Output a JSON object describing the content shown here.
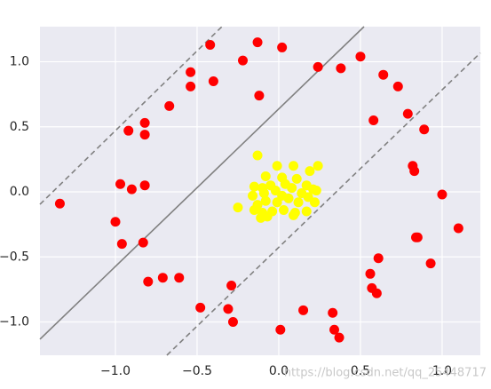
{
  "chart_data": {
    "type": "scatter",
    "xlim": [
      -1.462,
      1.234
    ],
    "ylim": [
      -1.256,
      1.27
    ],
    "xticks": [
      {
        "value": -1.0,
        "label": "−1.0"
      },
      {
        "value": -0.5,
        "label": "−0.5"
      },
      {
        "value": 0.0,
        "label": "0.0"
      },
      {
        "value": 0.5,
        "label": "0.5"
      },
      {
        "value": 1.0,
        "label": "1.0"
      }
    ],
    "yticks": [
      {
        "value": -1.0,
        "label": "−1.0"
      },
      {
        "value": -0.5,
        "label": "−0.5"
      },
      {
        "value": 0.0,
        "label": "0.0"
      },
      {
        "value": 0.5,
        "label": "0.5"
      },
      {
        "value": 1.0,
        "label": "1.0"
      }
    ],
    "grid": true,
    "background": "#eaeaf2",
    "watermark": "https://blog.csdn.net/qq_25448717",
    "series": [
      {
        "type": "line",
        "linestyle": "solid",
        "color": "#808080",
        "x": [
          -1.462,
          0.522
        ],
        "values": [
          -1.133,
          1.27
        ]
      },
      {
        "type": "line",
        "linestyle": "dashed",
        "color": "#808080",
        "x": [
          -1.462,
          -0.348
        ],
        "values": [
          -0.096,
          1.27
        ]
      },
      {
        "type": "line",
        "linestyle": "dashed",
        "color": "#808080",
        "x": [
          -0.685,
          1.234
        ],
        "values": [
          -1.256,
          1.068
        ]
      },
      {
        "type": "scatter",
        "color": "#ff0000",
        "x": [
          -1.34,
          -1.0,
          -0.96,
          -0.97,
          -0.9,
          -0.92,
          -0.82,
          -0.82,
          -0.82,
          -0.83,
          -0.8,
          -0.71,
          -0.61,
          -0.67,
          -0.54,
          -0.54,
          -0.42,
          -0.4,
          -0.22,
          -0.13,
          0.02,
          -0.12,
          0.24,
          0.38,
          0.5,
          0.64,
          0.73,
          0.58,
          0.79,
          0.89,
          0.82,
          0.83,
          1.0,
          1.1,
          0.85,
          0.84,
          0.61,
          0.93,
          0.56,
          0.57,
          0.6,
          -0.29,
          -0.48,
          -0.31,
          -0.28,
          0.01,
          0.15,
          0.33,
          0.34,
          0.37
        ],
        "values": [
          -0.09,
          -0.23,
          -0.4,
          0.06,
          0.02,
          0.47,
          0.53,
          0.44,
          0.05,
          -0.39,
          -0.69,
          -0.66,
          -0.66,
          0.66,
          0.81,
          0.92,
          1.13,
          0.85,
          1.01,
          1.15,
          1.11,
          0.74,
          0.96,
          0.95,
          1.04,
          0.9,
          0.81,
          0.55,
          0.6,
          0.48,
          0.2,
          0.16,
          -0.02,
          -0.28,
          -0.35,
          -0.35,
          -0.51,
          -0.55,
          -0.63,
          -0.74,
          -0.78,
          -0.72,
          -0.89,
          -0.9,
          -1.0,
          -1.06,
          -0.91,
          -0.93,
          -1.06,
          -1.12
        ]
      },
      {
        "type": "scatter",
        "color": "#ffff00",
        "x": [
          -0.13,
          -0.01,
          0.09,
          0.19,
          0.24,
          -0.08,
          0.02,
          0.11,
          0.17,
          -0.15,
          -0.1,
          -0.05,
          0.04,
          0.08,
          0.21,
          0.23,
          -0.16,
          -0.09,
          -0.02,
          0.02,
          0.14,
          0.18,
          -0.13,
          -0.08,
          -0.01,
          0.06,
          0.12,
          0.22,
          -0.15,
          -0.1,
          -0.04,
          0.03,
          0.17,
          -0.25,
          -0.11,
          -0.07,
          0.09,
          0.1
        ],
        "values": [
          0.28,
          0.2,
          0.2,
          0.16,
          0.2,
          0.12,
          0.11,
          0.1,
          0.05,
          0.04,
          0.03,
          0.05,
          0.06,
          0.03,
          0.02,
          0.01,
          -0.03,
          -0.01,
          0.01,
          -0.03,
          -0.01,
          -0.04,
          -0.1,
          -0.07,
          -0.08,
          -0.05,
          -0.08,
          -0.08,
          -0.14,
          -0.16,
          -0.15,
          -0.14,
          -0.15,
          -0.12,
          -0.2,
          -0.19,
          -0.18,
          -0.16
        ]
      }
    ]
  }
}
